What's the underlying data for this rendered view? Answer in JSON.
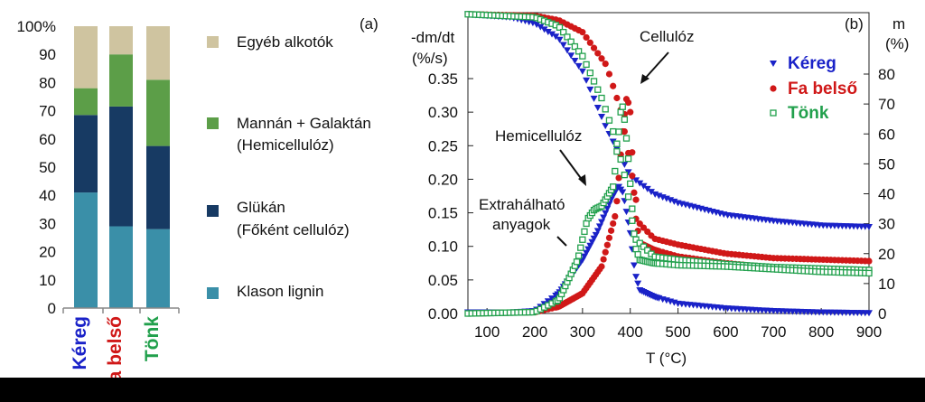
{
  "panel_a": {
    "tag": "(a)",
    "chart_data": {
      "type": "bar",
      "stacked": true,
      "categories": [
        "Kéreg",
        "Fa belső",
        "Tönk"
      ],
      "category_colors": [
        "#1a22c8",
        "#d01818",
        "#21a04c"
      ],
      "yticks": [
        "0",
        "10",
        "20",
        "30",
        "40",
        "50",
        "60",
        "70",
        "80",
        "90",
        "100%"
      ],
      "ylim": [
        0,
        100
      ],
      "series": [
        {
          "name": "Klason lignin",
          "color": "#3a8fa8",
          "values": [
            41,
            29,
            28
          ]
        },
        {
          "name": "Glükán",
          "name_line2": "(Főként cellulóz)",
          "color": "#173a63",
          "values": [
            27.5,
            42.5,
            29.5
          ]
        },
        {
          "name": "Mannán + Galaktán",
          "name_line2": "(Hemicellulóz)",
          "color": "#5c9e48",
          "values": [
            9.5,
            18.5,
            23.5
          ]
        },
        {
          "name": "Egyéb alkotók",
          "color": "#cfc4a0",
          "values": [
            22,
            10,
            19
          ]
        }
      ]
    }
  },
  "panel_b": {
    "tag": "(b)",
    "chart_data": {
      "type": "line",
      "xlabel": "T (°C)",
      "ylabel_left_line1": "-dm/dt",
      "ylabel_left_line2": "(%/s)",
      "ylabel_right_line1": "m",
      "ylabel_right_line2": "(%)",
      "xlim": [
        60,
        900
      ],
      "ylim_left": [
        0,
        0.4
      ],
      "ylim_right": [
        0,
        100
      ],
      "xticks": [
        "100",
        "200",
        "300",
        "400",
        "500",
        "600",
        "700",
        "800",
        "900"
      ],
      "yticks_left": [
        "0.00",
        "0.05",
        "0.10",
        "0.15",
        "0.20",
        "0.25",
        "0.30",
        "0.35"
      ],
      "yticks_right": [
        "0",
        "10",
        "20",
        "30",
        "40",
        "50",
        "60",
        "70",
        "80"
      ],
      "annotations": [
        "Cellulóz",
        "Hemicellulóz",
        "Extrahálható",
        "anyagok"
      ],
      "series": [
        {
          "name": "Kéreg",
          "color": "#1a22c8",
          "marker": "triangle-down",
          "dtg": [
            [
              60,
              0.002
            ],
            [
              150,
              0.002
            ],
            [
              200,
              0.004
            ],
            [
              250,
              0.03
            ],
            [
              300,
              0.08
            ],
            [
              330,
              0.12
            ],
            [
              360,
              0.17
            ],
            [
              375,
              0.19
            ],
            [
              385,
              0.18
            ],
            [
              400,
              0.12
            ],
            [
              410,
              0.06
            ],
            [
              420,
              0.035
            ],
            [
              450,
              0.025
            ],
            [
              500,
              0.015
            ],
            [
              600,
              0.008
            ],
            [
              700,
              0.004
            ],
            [
              800,
              0.002
            ],
            [
              900,
              0.001
            ]
          ],
          "tg": [
            [
              60,
              100
            ],
            [
              150,
              99
            ],
            [
              200,
              97
            ],
            [
              250,
              92
            ],
            [
              300,
              81
            ],
            [
              350,
              62
            ],
            [
              400,
              46
            ],
            [
              450,
              40
            ],
            [
              500,
              37
            ],
            [
              600,
              33
            ],
            [
              700,
              31
            ],
            [
              800,
              29.5
            ],
            [
              900,
              29
            ]
          ]
        },
        {
          "name": "Fa belső",
          "color": "#d01818",
          "marker": "circle",
          "dtg": [
            [
              60,
              0
            ],
            [
              200,
              0.002
            ],
            [
              250,
              0.01
            ],
            [
              300,
              0.03
            ],
            [
              340,
              0.07
            ],
            [
              370,
              0.15
            ],
            [
              385,
              0.28
            ],
            [
              393,
              0.325
            ],
            [
              400,
              0.3
            ],
            [
              410,
              0.15
            ],
            [
              420,
              0.105
            ],
            [
              450,
              0.095
            ],
            [
              500,
              0.085
            ],
            [
              600,
              0.075
            ],
            [
              700,
              0.068
            ],
            [
              800,
              0.065
            ],
            [
              900,
              0.064
            ]
          ],
          "tg": [
            [
              60,
              100
            ],
            [
              200,
              99.5
            ],
            [
              250,
              98
            ],
            [
              300,
              94
            ],
            [
              350,
              83
            ],
            [
              380,
              68
            ],
            [
              400,
              50
            ],
            [
              420,
              30
            ],
            [
              450,
              25
            ],
            [
              500,
              23
            ],
            [
              600,
              20
            ],
            [
              700,
              18.5
            ],
            [
              800,
              18
            ],
            [
              900,
              17.5
            ]
          ]
        },
        {
          "name": "Tönk",
          "color": "#21a04c",
          "marker": "square",
          "dtg": [
            [
              60,
              0
            ],
            [
              200,
              0.002
            ],
            [
              250,
              0.02
            ],
            [
              290,
              0.08
            ],
            [
              310,
              0.14
            ],
            [
              325,
              0.155
            ],
            [
              340,
              0.16
            ],
            [
              365,
              0.19
            ],
            [
              380,
              0.3
            ],
            [
              385,
              0.31
            ],
            [
              395,
              0.24
            ],
            [
              410,
              0.1
            ],
            [
              420,
              0.08
            ],
            [
              450,
              0.075
            ],
            [
              500,
              0.072
            ],
            [
              600,
              0.07
            ],
            [
              700,
              0.066
            ],
            [
              800,
              0.062
            ],
            [
              900,
              0.06
            ]
          ],
          "tg": [
            [
              60,
              100
            ],
            [
              200,
              99
            ],
            [
              250,
              96
            ],
            [
              300,
              86
            ],
            [
              340,
              72
            ],
            [
              370,
              58
            ],
            [
              390,
              45
            ],
            [
              410,
              25
            ],
            [
              450,
              19
            ],
            [
              500,
              18
            ],
            [
              600,
              16.5
            ],
            [
              700,
              15.5
            ],
            [
              800,
              15
            ],
            [
              900,
              14.5
            ]
          ]
        }
      ]
    }
  }
}
